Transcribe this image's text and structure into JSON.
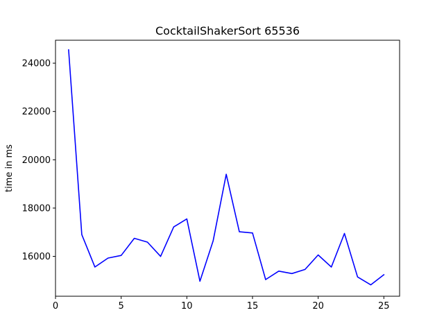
{
  "chart_data": {
    "type": "line",
    "title": "CocktailShakerSort 65536",
    "xlabel": "",
    "ylabel": "time in ms",
    "xlim": [
      0,
      26.2
    ],
    "ylim": [
      14350,
      24950
    ],
    "xticks": [
      0,
      5,
      10,
      15,
      20,
      25
    ],
    "yticks": [
      16000,
      18000,
      20000,
      22000,
      24000
    ],
    "grid": false,
    "series": [
      {
        "color": "#0000ff",
        "x": [
          1,
          2,
          3,
          4,
          5,
          6,
          7,
          8,
          9,
          10,
          11,
          12,
          13,
          14,
          15,
          16,
          17,
          18,
          19,
          20,
          21,
          22,
          23,
          24,
          25
        ],
        "y": [
          24550,
          16900,
          15560,
          15930,
          16040,
          16750,
          16590,
          16000,
          17220,
          17550,
          14970,
          16640,
          19400,
          17020,
          16970,
          15040,
          15390,
          15290,
          15460,
          16060,
          15560,
          16950,
          15150,
          14820,
          15240
        ]
      }
    ]
  }
}
